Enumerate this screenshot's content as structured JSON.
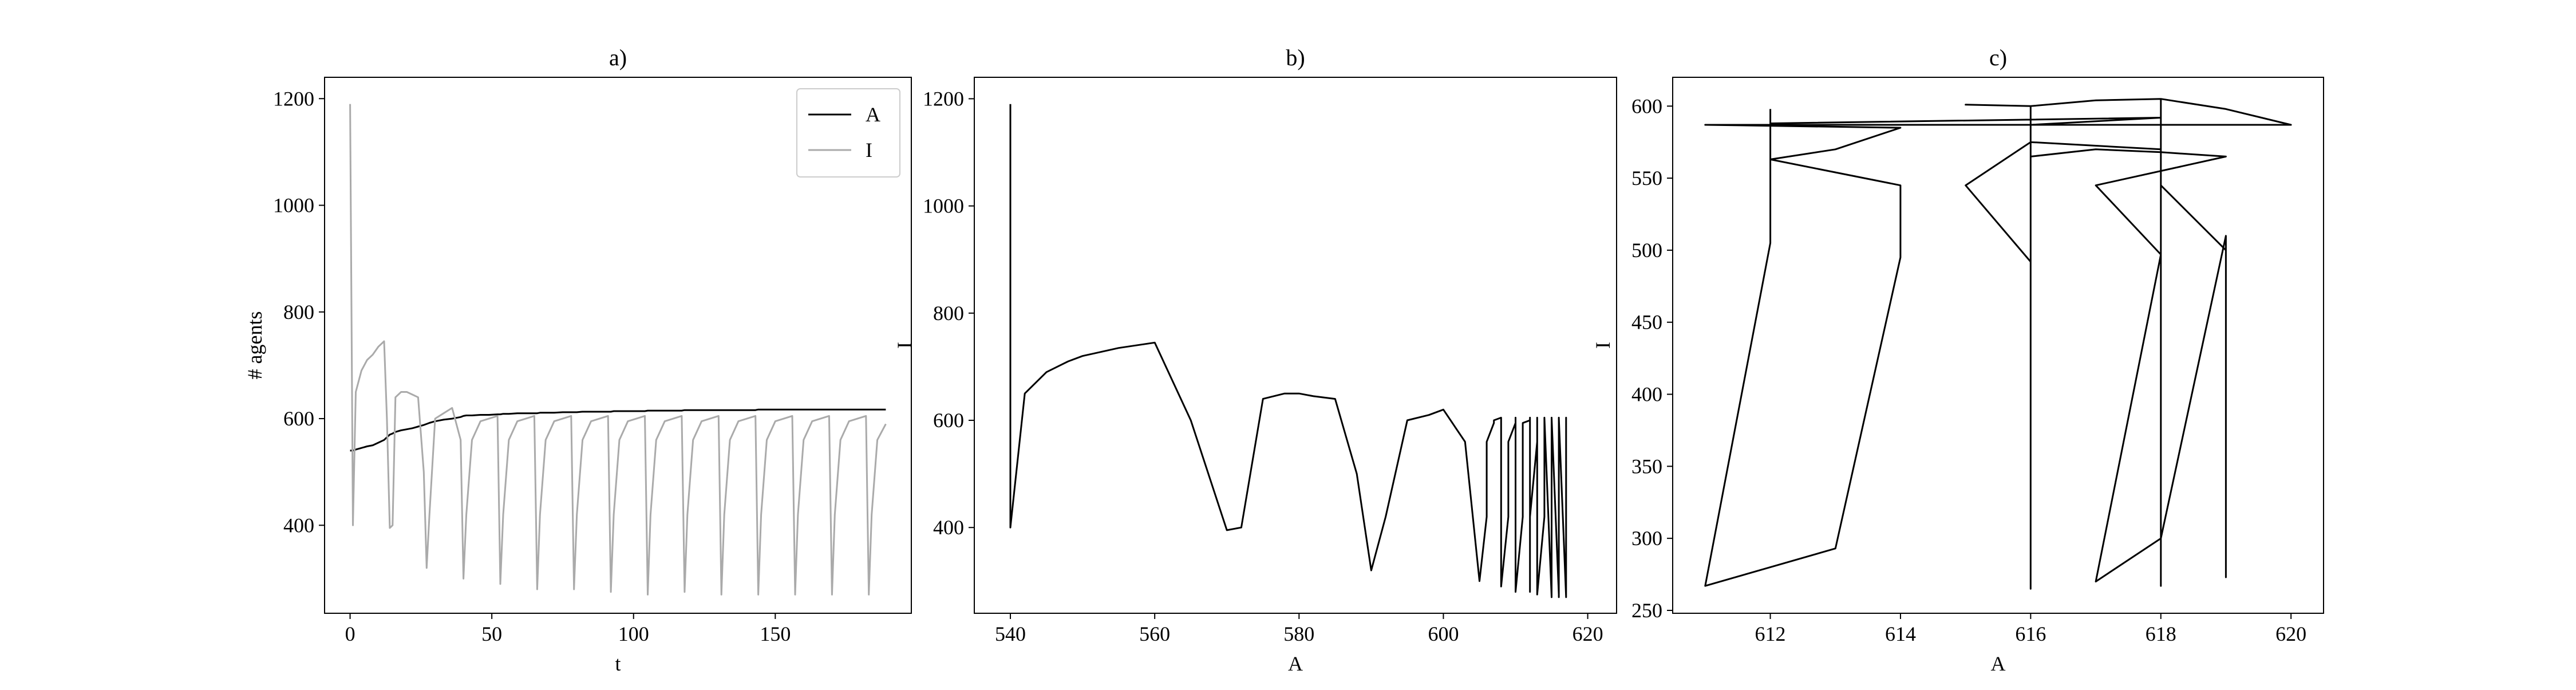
{
  "chart_data": [
    {
      "type": "line",
      "title": "a)",
      "xlabel": "t",
      "ylabel": "# agents",
      "x": [
        0,
        1,
        2,
        4,
        6,
        8,
        10,
        12,
        13,
        14,
        15,
        16,
        18,
        20,
        22,
        24,
        26,
        27,
        28,
        30,
        33,
        36,
        39,
        40,
        41,
        43,
        46,
        49,
        52,
        53,
        54,
        56,
        59,
        62,
        65,
        66,
        67,
        69,
        72,
        75,
        78,
        79,
        80,
        82,
        85,
        88,
        91,
        92,
        93,
        95,
        98,
        101,
        104,
        105,
        106,
        108,
        111,
        114,
        117,
        118,
        119,
        121,
        124,
        127,
        130,
        131,
        132,
        134,
        137,
        140,
        143,
        144,
        145,
        147,
        150,
        153,
        156,
        157,
        158,
        160,
        163,
        166,
        169,
        170,
        171,
        173,
        176,
        179,
        182,
        183,
        184,
        186,
        189
      ],
      "series": [
        {
          "name": "A",
          "color": "#000000",
          "values": [
            540,
            540,
            542,
            545,
            548,
            550,
            555,
            560,
            565,
            570,
            572,
            575,
            578,
            580,
            582,
            585,
            588,
            590,
            592,
            595,
            598,
            600,
            603,
            605,
            606,
            606,
            607,
            607,
            608,
            608,
            609,
            609,
            610,
            610,
            610,
            610,
            611,
            611,
            611,
            612,
            612,
            612,
            612,
            613,
            613,
            613,
            613,
            613,
            614,
            614,
            614,
            614,
            614,
            615,
            615,
            615,
            615,
            615,
            615,
            616,
            616,
            616,
            616,
            616,
            616,
            616,
            616,
            616,
            616,
            616,
            616,
            617,
            617,
            617,
            617,
            617,
            617,
            617,
            617,
            617,
            617,
            617,
            617,
            617,
            617,
            617,
            617,
            617,
            617,
            617,
            617,
            617,
            617
          ]
        },
        {
          "name": "I",
          "color": "#aaaaaa",
          "values": [
            1190,
            400,
            650,
            690,
            710,
            720,
            735,
            745,
            600,
            395,
            400,
            640,
            650,
            650,
            645,
            640,
            500,
            320,
            420,
            600,
            610,
            620,
            560,
            300,
            420,
            560,
            595,
            600,
            605,
            290,
            420,
            560,
            595,
            600,
            605,
            280,
            420,
            560,
            595,
            600,
            605,
            280,
            420,
            560,
            595,
            600,
            605,
            275,
            420,
            560,
            595,
            600,
            605,
            270,
            420,
            560,
            595,
            600,
            605,
            275,
            420,
            560,
            595,
            600,
            605,
            270,
            420,
            560,
            595,
            600,
            605,
            270,
            420,
            560,
            595,
            600,
            605,
            270,
            420,
            560,
            595,
            600,
            605,
            270,
            420,
            560,
            595,
            600,
            605,
            270,
            420,
            560,
            590
          ]
        }
      ],
      "xlim": [
        -9,
        198
      ],
      "ylim": [
        235,
        1240
      ],
      "xticks": [
        0,
        50,
        100,
        150
      ],
      "yticks": [
        400,
        600,
        800,
        1000,
        1200
      ],
      "legend": "upper right"
    },
    {
      "type": "line",
      "title": "b)",
      "xlabel": "A",
      "ylabel": "I",
      "x": [
        540,
        540,
        542,
        545,
        548,
        550,
        555,
        560,
        565,
        570,
        572,
        575,
        578,
        580,
        582,
        585,
        588,
        590,
        592,
        595,
        598,
        600,
        603,
        605,
        606,
        606,
        607,
        607,
        608,
        608,
        609,
        609,
        610,
        610,
        610,
        610,
        611,
        611,
        611,
        612,
        612,
        612,
        612,
        613,
        613,
        613,
        613,
        613,
        614,
        614,
        614,
        614,
        614,
        615,
        615,
        615,
        615,
        615,
        615,
        616,
        616,
        616,
        616,
        616,
        616,
        616,
        616,
        616,
        616,
        616,
        616,
        617,
        617,
        617,
        617,
        617,
        617,
        617,
        617,
        617,
        617,
        617,
        617,
        617,
        617,
        617,
        617,
        617,
        617,
        617,
        617,
        617,
        617
      ],
      "series": [
        {
          "color": "#000000",
          "values": [
            1190,
            400,
            650,
            690,
            710,
            720,
            735,
            745,
            600,
            395,
            400,
            640,
            650,
            650,
            645,
            640,
            500,
            320,
            420,
            600,
            610,
            620,
            560,
            300,
            420,
            560,
            595,
            600,
            605,
            290,
            420,
            560,
            595,
            600,
            605,
            280,
            420,
            560,
            595,
            600,
            605,
            280,
            420,
            560,
            595,
            600,
            605,
            275,
            420,
            560,
            595,
            600,
            605,
            270,
            420,
            560,
            595,
            600,
            605,
            275,
            420,
            560,
            595,
            600,
            605,
            270,
            420,
            560,
            595,
            600,
            605,
            270,
            420,
            560,
            595,
            600,
            605,
            270,
            420,
            560,
            595,
            600,
            605,
            270,
            420,
            560,
            595,
            600,
            605,
            270,
            420,
            560,
            590
          ]
        }
      ],
      "xlim": [
        535,
        624
      ],
      "ylim": [
        240,
        1240
      ],
      "xticks": [
        540,
        560,
        580,
        600,
        620
      ],
      "yticks": [
        400,
        600,
        800,
        1000,
        1200
      ]
    },
    {
      "type": "line",
      "title": "c)",
      "xlabel": "A",
      "ylabel": "I",
      "x": [
        612,
        612,
        611,
        613,
        614,
        614,
        612,
        613,
        614,
        611,
        620,
        619,
        618,
        617,
        616,
        615,
        616,
        616,
        617,
        618,
        619,
        617,
        618,
        617,
        618,
        619,
        619,
        619,
        618,
        618,
        618,
        618,
        616,
        615,
        616,
        616,
        616,
        618,
        612
      ],
      "series": [
        {
          "color": "#000000",
          "values": [
            598,
            505,
            267,
            293,
            495,
            545,
            563,
            570,
            585,
            587,
            587,
            598,
            605,
            604,
            600,
            601,
            600,
            565,
            570,
            568,
            565,
            545,
            497,
            270,
            300,
            510,
            273,
            500,
            545,
            605,
            267,
            570,
            575,
            545,
            492,
            265,
            587,
            592,
            588
          ]
        }
      ],
      "xlim": [
        610.5,
        620.5
      ],
      "ylim": [
        248,
        620
      ],
      "xticks": [
        612,
        614,
        616,
        618,
        620
      ],
      "yticks": [
        250,
        300,
        350,
        400,
        450,
        500,
        550,
        600
      ]
    }
  ]
}
